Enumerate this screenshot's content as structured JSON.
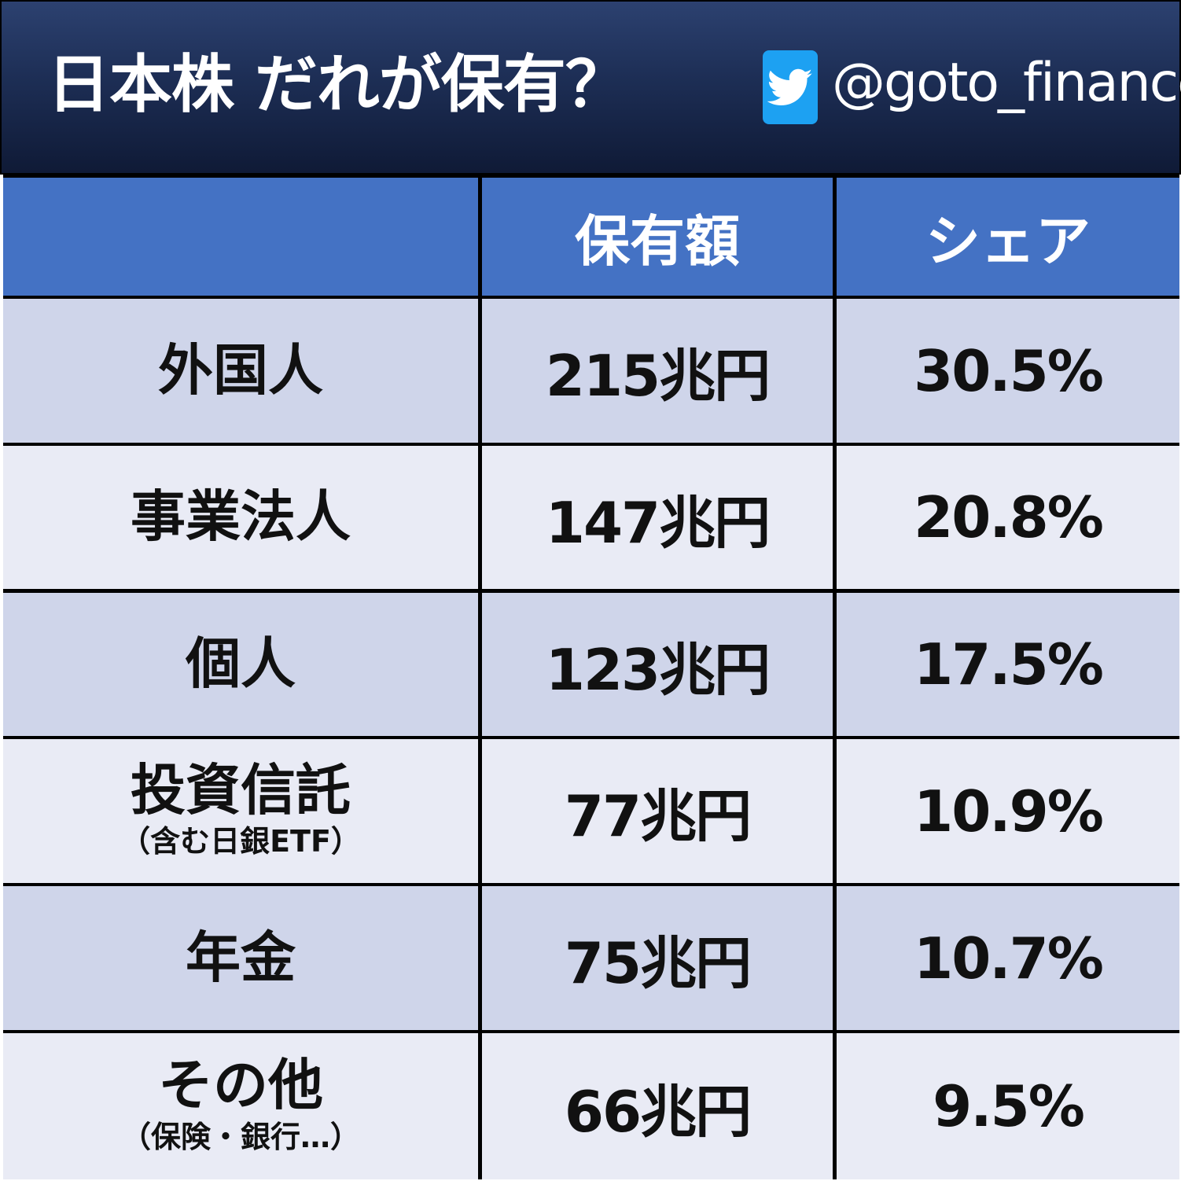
{
  "header": {
    "title": "日本株 だれが保有？",
    "handle": "@goto_finance",
    "icon": "twitter-icon"
  },
  "table": {
    "columns": [
      "",
      "保有額",
      "シェア"
    ],
    "rows": [
      {
        "label": "外国人",
        "sub": "",
        "amount": "215兆円",
        "share": "30.5%"
      },
      {
        "label": "事業法人",
        "sub": "",
        "amount": "147兆円",
        "share": "20.8%"
      },
      {
        "label": "個人",
        "sub": "",
        "amount": "123兆円",
        "share": "17.5%"
      },
      {
        "label": "投資信託",
        "sub": "（含む日銀ETF）",
        "amount": "77兆円",
        "share": "10.9%"
      },
      {
        "label": "年金",
        "sub": "",
        "amount": "75兆円",
        "share": "10.7%"
      },
      {
        "label": "その他",
        "sub": "（保険・銀行…）",
        "amount": "66兆円",
        "share": "9.5%"
      }
    ]
  },
  "colors": {
    "header_bg": "#1d2e55",
    "table_header": "#4472c4",
    "row_dark": "#cfd5ea",
    "row_light": "#e9ebf5",
    "twitter": "#1da1f2"
  },
  "chart_data": {
    "type": "table",
    "title": "日本株 だれが保有？",
    "columns": [
      "",
      "保有額",
      "シェア"
    ],
    "categories": [
      "外国人",
      "事業法人",
      "個人",
      "投資信託",
      "年金",
      "その他"
    ],
    "series": [
      {
        "name": "保有額",
        "values": [
          215,
          147,
          123,
          77,
          75,
          66
        ],
        "unit": "兆円"
      },
      {
        "name": "シェア",
        "values": [
          30.5,
          20.8,
          17.5,
          10.9,
          10.7,
          9.5
        ],
        "unit": "%"
      }
    ]
  }
}
